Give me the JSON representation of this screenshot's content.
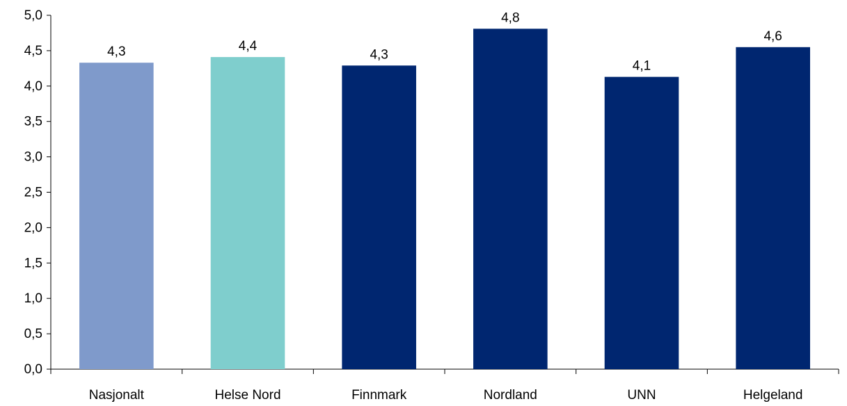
{
  "chart_data": {
    "type": "bar",
    "title": "",
    "xlabel": "",
    "ylabel": "",
    "categories": [
      "Nasjonalt",
      "Helse Nord",
      "Finnmark",
      "Nordland",
      "UNN",
      "Helgeland"
    ],
    "values": [
      4.33,
      4.41,
      4.29,
      4.81,
      4.13,
      4.55
    ],
    "data_labels": [
      "4,3",
      "4,4",
      "4,3",
      "4,8",
      "4,1",
      "4,6"
    ],
    "bar_colors": [
      "#7f9acb",
      "#7fcecd",
      "#002670",
      "#002670",
      "#002670",
      "#002670"
    ],
    "ylim": [
      0,
      5
    ],
    "yticks": [
      0,
      0.5,
      1,
      1.5,
      2,
      2.5,
      3,
      3.5,
      4,
      4.5,
      5
    ],
    "ytick_labels": [
      "0,0",
      "0,5",
      "1,0",
      "1,5",
      "2,0",
      "2,5",
      "3,0",
      "3,5",
      "4,0",
      "4,5",
      "5,0"
    ],
    "grid": false,
    "legend": "none"
  }
}
